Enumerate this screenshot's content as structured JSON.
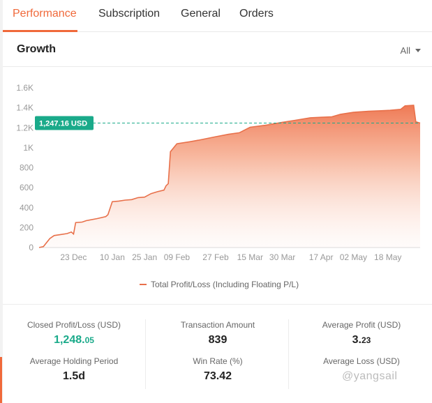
{
  "tabs": [
    {
      "label": "Performance",
      "active": true
    },
    {
      "label": "Subscription",
      "active": false
    },
    {
      "label": "General",
      "active": false
    },
    {
      "label": "Orders",
      "active": false
    }
  ],
  "growth": {
    "title": "Growth",
    "range": "All"
  },
  "chart_data": {
    "type": "area",
    "y_ticks": [
      "0",
      "200",
      "400",
      "600",
      "800",
      "1K",
      "1.2K",
      "1.4K",
      "1.6K"
    ],
    "ylim": [
      0,
      1600
    ],
    "x_ticks": [
      "23 Dec",
      "10 Jan",
      "25 Jan",
      "09 Feb",
      "27 Feb",
      "15 Mar",
      "30 Mar",
      "17 Apr",
      "02 May",
      "18 May"
    ],
    "x_start": "2021-12-07",
    "x_end": "2022-06-02",
    "grid": "none",
    "series": [
      {
        "name": "Total Profit/Loss (Including Floating P/L)",
        "color": "#e8704a",
        "points": [
          [
            "2021-12-07",
            0
          ],
          [
            "2021-12-09",
            10
          ],
          [
            "2021-12-12",
            90
          ],
          [
            "2021-12-14",
            120
          ],
          [
            "2021-12-17",
            130
          ],
          [
            "2021-12-20",
            140
          ],
          [
            "2021-12-22",
            155
          ],
          [
            "2021-12-23",
            135
          ],
          [
            "2021-12-24",
            250
          ],
          [
            "2021-12-27",
            255
          ],
          [
            "2021-12-29",
            270
          ],
          [
            "2022-01-03",
            290
          ],
          [
            "2022-01-07",
            310
          ],
          [
            "2022-01-08",
            330
          ],
          [
            "2022-01-10",
            460
          ],
          [
            "2022-01-13",
            465
          ],
          [
            "2022-01-16",
            475
          ],
          [
            "2022-01-19",
            480
          ],
          [
            "2022-01-22",
            500
          ],
          [
            "2022-01-25",
            505
          ],
          [
            "2022-01-28",
            540
          ],
          [
            "2022-01-31",
            560
          ],
          [
            "2022-02-03",
            575
          ],
          [
            "2022-02-04",
            620
          ],
          [
            "2022-02-05",
            640
          ],
          [
            "2022-02-06",
            960
          ],
          [
            "2022-02-09",
            1040
          ],
          [
            "2022-02-15",
            1060
          ],
          [
            "2022-02-19",
            1075
          ],
          [
            "2022-02-27",
            1110
          ],
          [
            "2022-03-05",
            1135
          ],
          [
            "2022-03-10",
            1150
          ],
          [
            "2022-03-15",
            1205
          ],
          [
            "2022-03-22",
            1225
          ],
          [
            "2022-03-30",
            1255
          ],
          [
            "2022-04-05",
            1275
          ],
          [
            "2022-04-12",
            1300
          ],
          [
            "2022-04-17",
            1305
          ],
          [
            "2022-04-22",
            1310
          ],
          [
            "2022-04-26",
            1335
          ],
          [
            "2022-05-02",
            1355
          ],
          [
            "2022-05-09",
            1365
          ],
          [
            "2022-05-14",
            1370
          ],
          [
            "2022-05-19",
            1375
          ],
          [
            "2022-05-24",
            1385
          ],
          [
            "2022-05-26",
            1420
          ],
          [
            "2022-05-30",
            1425
          ],
          [
            "2022-05-31",
            1260
          ],
          [
            "2022-06-02",
            1247.16
          ]
        ]
      }
    ],
    "reference_line": {
      "value": 1247.16,
      "label": "1,247.16 USD",
      "color": "#1aaa8a"
    }
  },
  "stats": {
    "closed_profit": {
      "label": "Closed Profit/Loss (USD)",
      "int": "1,248.",
      "dec": "05"
    },
    "transaction_amount": {
      "label": "Transaction Amount",
      "value": "839"
    },
    "average_profit": {
      "label": "Average Profit (USD)",
      "int": "3.",
      "dec": "23"
    },
    "average_holding": {
      "label": "Average Holding Period",
      "value": "1.5d"
    },
    "win_rate": {
      "label": "Win Rate (%)",
      "value": "73.42"
    },
    "average_loss": {
      "label": "Average Loss (USD)"
    }
  },
  "watermark": "@yangsail"
}
